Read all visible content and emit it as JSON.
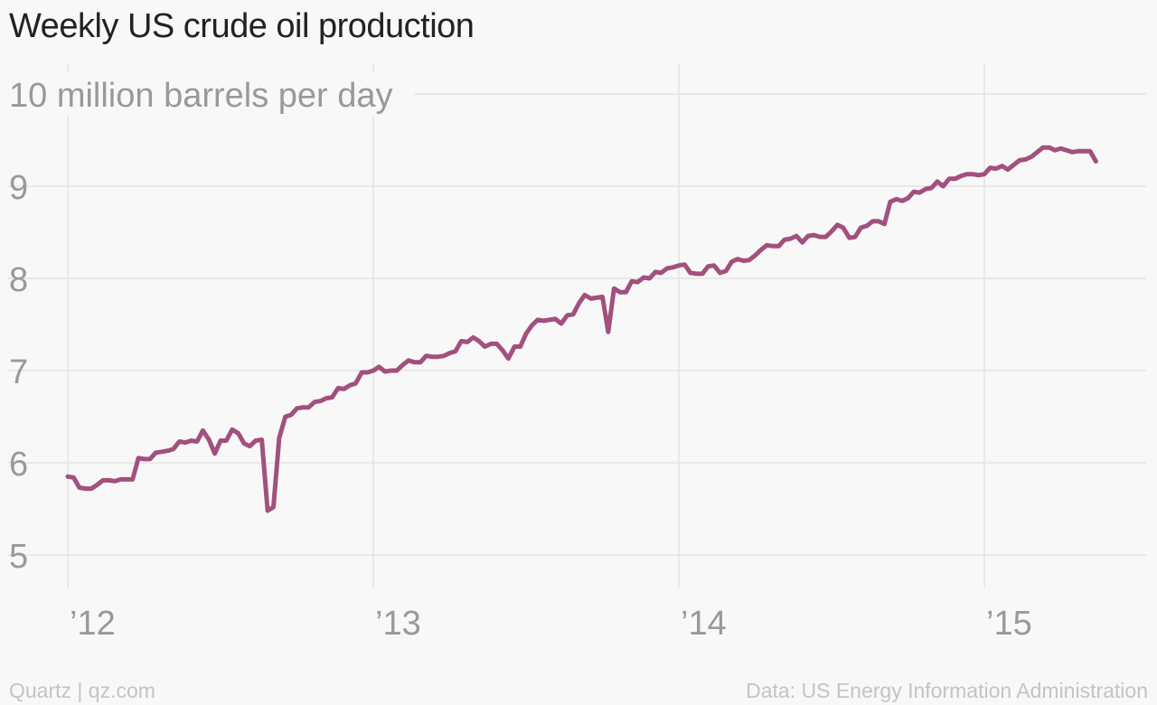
{
  "chart_data": {
    "type": "line",
    "title": "Weekly US crude oil production",
    "unit_label": "10 million barrels per day",
    "ylim": [
      5,
      10
    ],
    "yticks": [
      5,
      6,
      7,
      8,
      9
    ],
    "xlim": [
      2012.0,
      2015.5
    ],
    "xticks": [
      {
        "value": 2012,
        "label": "’12"
      },
      {
        "value": 2013,
        "label": "’13"
      },
      {
        "value": 2014,
        "label": "’14"
      },
      {
        "value": 2015,
        "label": "’15"
      }
    ],
    "grid": true,
    "series": [
      {
        "color": "#a2507e",
        "x": [
          2012.0,
          2012.019,
          2012.038,
          2012.058,
          2012.077,
          2012.096,
          2012.115,
          2012.135,
          2012.154,
          2012.173,
          2012.192,
          2012.212,
          2012.231,
          2012.25,
          2012.269,
          2012.288,
          2012.308,
          2012.327,
          2012.346,
          2012.365,
          2012.385,
          2012.404,
          2012.423,
          2012.442,
          2012.462,
          2012.481,
          2012.5,
          2012.519,
          2012.538,
          2012.558,
          2012.577,
          2012.596,
          2012.615,
          2012.635,
          2012.654,
          2012.673,
          2012.692,
          2012.712,
          2012.731,
          2012.75,
          2012.769,
          2012.788,
          2012.808,
          2012.827,
          2012.846,
          2012.865,
          2012.885,
          2012.904,
          2012.923,
          2012.942,
          2012.962,
          2012.981,
          2013.0,
          2013.019,
          2013.038,
          2013.058,
          2013.077,
          2013.096,
          2013.115,
          2013.135,
          2013.154,
          2013.173,
          2013.192,
          2013.212,
          2013.231,
          2013.25,
          2013.269,
          2013.288,
          2013.308,
          2013.327,
          2013.346,
          2013.365,
          2013.385,
          2013.404,
          2013.423,
          2013.442,
          2013.462,
          2013.481,
          2013.5,
          2013.519,
          2013.538,
          2013.558,
          2013.577,
          2013.596,
          2013.615,
          2013.635,
          2013.654,
          2013.673,
          2013.692,
          2013.712,
          2013.731,
          2013.75,
          2013.769,
          2013.788,
          2013.808,
          2013.827,
          2013.846,
          2013.865,
          2013.885,
          2013.904,
          2013.923,
          2013.942,
          2013.962,
          2013.981,
          2014.0,
          2014.019,
          2014.038,
          2014.058,
          2014.077,
          2014.096,
          2014.115,
          2014.135,
          2014.154,
          2014.173,
          2014.192,
          2014.212,
          2014.231,
          2014.25,
          2014.269,
          2014.288,
          2014.308,
          2014.327,
          2014.346,
          2014.365,
          2014.385,
          2014.404,
          2014.423,
          2014.442,
          2014.462,
          2014.481,
          2014.5,
          2014.519,
          2014.538,
          2014.558,
          2014.577,
          2014.596,
          2014.615,
          2014.635,
          2014.654,
          2014.673,
          2014.692,
          2014.712,
          2014.731,
          2014.75,
          2014.769,
          2014.788,
          2014.808,
          2014.827,
          2014.846,
          2014.865,
          2014.885,
          2014.904,
          2014.923,
          2014.942,
          2014.962,
          2014.981,
          2015.0,
          2015.019,
          2015.038,
          2015.058,
          2015.077,
          2015.096,
          2015.115,
          2015.135,
          2015.154,
          2015.173,
          2015.192,
          2015.212,
          2015.231,
          2015.25,
          2015.269,
          2015.288,
          2015.308,
          2015.327,
          2015.346,
          2015.365
        ],
        "values": [
          5.85,
          5.84,
          5.73,
          5.72,
          5.72,
          5.76,
          5.81,
          5.81,
          5.8,
          5.82,
          5.82,
          5.82,
          6.05,
          6.04,
          6.04,
          6.11,
          6.12,
          6.13,
          6.15,
          6.23,
          6.22,
          6.24,
          6.23,
          6.35,
          6.25,
          6.1,
          6.24,
          6.24,
          6.36,
          6.32,
          6.21,
          6.18,
          6.24,
          6.25,
          5.48,
          5.52,
          6.27,
          6.5,
          6.52,
          6.59,
          6.6,
          6.6,
          6.66,
          6.67,
          6.7,
          6.71,
          6.81,
          6.8,
          6.84,
          6.86,
          6.98,
          6.98,
          7.0,
          7.04,
          6.99,
          7.0,
          7.0,
          7.06,
          7.11,
          7.09,
          7.09,
          7.16,
          7.15,
          7.15,
          7.16,
          7.19,
          7.21,
          7.32,
          7.31,
          7.36,
          7.32,
          7.26,
          7.29,
          7.29,
          7.22,
          7.13,
          7.26,
          7.26,
          7.4,
          7.49,
          7.55,
          7.54,
          7.55,
          7.56,
          7.51,
          7.6,
          7.61,
          7.73,
          7.82,
          7.78,
          7.79,
          7.8,
          7.42,
          7.89,
          7.85,
          7.85,
          7.97,
          7.96,
          8.01,
          8.0,
          8.07,
          8.06,
          8.11,
          8.12,
          8.14,
          8.15,
          8.06,
          8.05,
          8.05,
          8.13,
          8.14,
          8.06,
          8.08,
          8.18,
          8.21,
          8.19,
          8.2,
          8.25,
          8.31,
          8.36,
          8.35,
          8.35,
          8.42,
          8.43,
          8.46,
          8.39,
          8.46,
          8.47,
          8.45,
          8.45,
          8.51,
          8.58,
          8.55,
          8.44,
          8.45,
          8.55,
          8.57,
          8.62,
          8.62,
          8.59,
          8.83,
          8.86,
          8.84,
          8.87,
          8.94,
          8.93,
          8.97,
          8.98,
          9.05,
          9.0,
          9.08,
          9.08,
          9.11,
          9.13,
          9.13,
          9.12,
          9.13,
          9.2,
          9.19,
          9.22,
          9.18,
          9.23,
          9.28,
          9.29,
          9.32,
          9.37,
          9.42,
          9.42,
          9.39,
          9.41,
          9.39,
          9.37,
          9.38,
          9.38,
          9.38,
          9.27
        ]
      }
    ]
  },
  "footer": {
    "source_left": "Quartz | qz.com",
    "source_right": "Data: US Energy Information Administration"
  }
}
